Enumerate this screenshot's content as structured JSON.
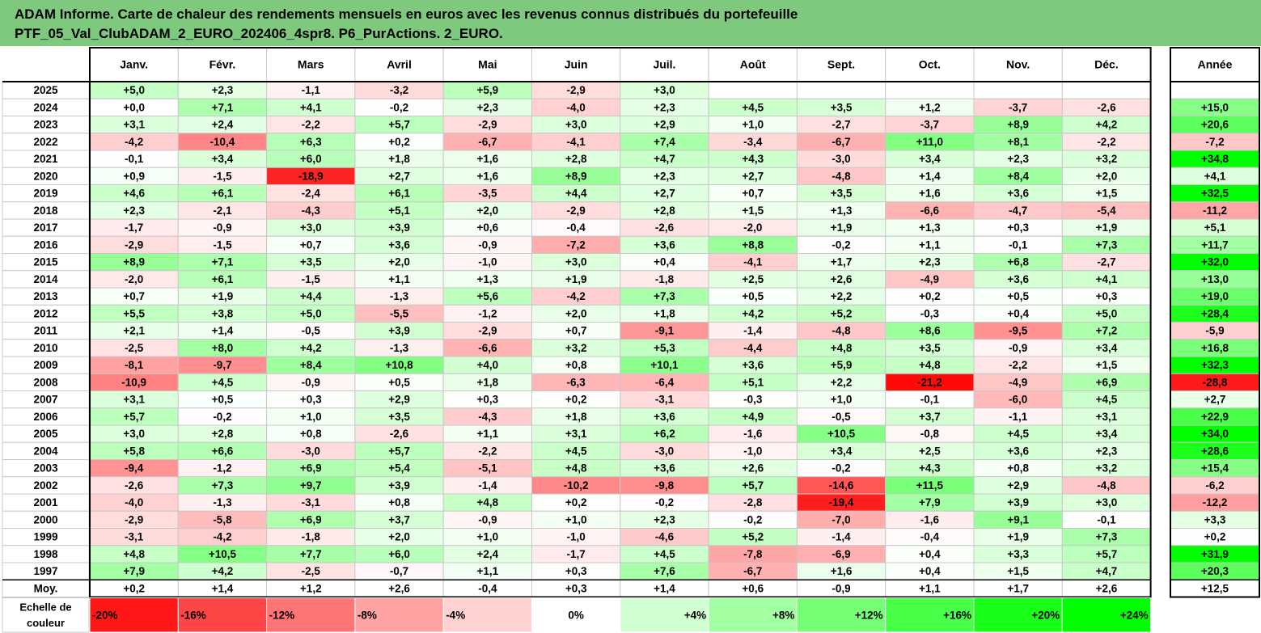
{
  "title": {
    "line1": "ADAM Informe. Carte de chaleur des rendements mensuels en euros avec les revenus connus distribués du portefeuille",
    "line2": "PTF_05_Val_ClubADAM_2_EURO_202406_4spr8. P6_PurActions. 2_EURO."
  },
  "chart_data": {
    "type": "heatmap",
    "months": [
      "Janv.",
      "Févr.",
      "Mars",
      "Avril",
      "Mai",
      "Juin",
      "Juil.",
      "Août",
      "Sept.",
      "Oct.",
      "Nov.",
      "Déc."
    ],
    "annual_header": "Année",
    "rows": [
      {
        "year": "2025",
        "values": [
          5.0,
          2.3,
          -1.1,
          -3.2,
          5.9,
          -2.9,
          3.0,
          null,
          null,
          null,
          null,
          null
        ],
        "annual": null
      },
      {
        "year": "2024",
        "values": [
          0.0,
          7.1,
          4.1,
          -0.2,
          2.3,
          -4.0,
          2.3,
          4.5,
          3.5,
          1.2,
          -3.7,
          -2.6
        ],
        "annual": 15.0
      },
      {
        "year": "2023",
        "values": [
          3.1,
          2.4,
          -2.2,
          5.7,
          -2.9,
          3.0,
          2.9,
          1.0,
          -2.7,
          -3.7,
          8.9,
          4.2
        ],
        "annual": 20.6
      },
      {
        "year": "2022",
        "values": [
          -4.2,
          -10.4,
          6.3,
          0.2,
          -6.7,
          -4.1,
          7.4,
          -3.4,
          -6.7,
          11.0,
          8.1,
          -2.2
        ],
        "annual": -7.2
      },
      {
        "year": "2021",
        "values": [
          -0.1,
          3.4,
          6.0,
          1.8,
          1.6,
          2.8,
          4.7,
          4.3,
          -3.0,
          3.4,
          2.3,
          3.2
        ],
        "annual": 34.8
      },
      {
        "year": "2020",
        "values": [
          0.9,
          -1.5,
          -18.9,
          2.7,
          1.6,
          8.9,
          2.3,
          2.7,
          -4.8,
          1.4,
          8.4,
          2.0
        ],
        "annual": 4.1
      },
      {
        "year": "2019",
        "values": [
          4.6,
          6.1,
          -2.4,
          6.1,
          -3.5,
          4.4,
          2.7,
          0.7,
          3.5,
          1.6,
          3.6,
          1.5
        ],
        "annual": 32.5
      },
      {
        "year": "2018",
        "values": [
          2.3,
          -2.1,
          -4.3,
          5.1,
          2.0,
          -2.9,
          2.8,
          1.5,
          1.3,
          -6.6,
          -4.7,
          -5.4
        ],
        "annual": -11.2
      },
      {
        "year": "2017",
        "values": [
          -1.7,
          -0.9,
          3.0,
          3.9,
          0.6,
          -0.4,
          -2.6,
          -2.0,
          1.9,
          1.3,
          0.3,
          1.9
        ],
        "annual": 5.1
      },
      {
        "year": "2016",
        "values": [
          -2.9,
          -1.5,
          0.7,
          3.6,
          -0.9,
          -7.2,
          3.6,
          8.8,
          -0.2,
          1.1,
          -0.1,
          7.3
        ],
        "annual": 11.7
      },
      {
        "year": "2015",
        "values": [
          8.9,
          7.1,
          3.5,
          2.0,
          -1.0,
          3.0,
          0.4,
          -4.1,
          1.7,
          2.3,
          6.8,
          -2.7
        ],
        "annual": 32.0
      },
      {
        "year": "2014",
        "values": [
          -2.0,
          6.1,
          -1.5,
          1.1,
          1.3,
          1.9,
          -1.8,
          2.5,
          2.6,
          -4.9,
          3.6,
          4.1
        ],
        "annual": 13.0
      },
      {
        "year": "2013",
        "values": [
          0.7,
          1.9,
          4.4,
          -1.3,
          5.6,
          -4.2,
          7.3,
          0.5,
          2.2,
          0.2,
          0.5,
          0.3
        ],
        "annual": 19.0
      },
      {
        "year": "2012",
        "values": [
          5.5,
          3.8,
          5.0,
          -5.5,
          -1.2,
          2.0,
          1.8,
          4.2,
          5.2,
          -0.3,
          0.4,
          5.0
        ],
        "annual": 28.4
      },
      {
        "year": "2011",
        "values": [
          2.1,
          1.4,
          -0.5,
          3.9,
          -2.9,
          0.7,
          -9.1,
          -1.4,
          -4.8,
          8.6,
          -9.5,
          7.2
        ],
        "annual": -5.9
      },
      {
        "year": "2010",
        "values": [
          -2.5,
          8.0,
          4.2,
          -1.3,
          -6.6,
          3.2,
          5.3,
          -4.4,
          4.8,
          3.5,
          -0.9,
          3.4
        ],
        "annual": 16.8
      },
      {
        "year": "2009",
        "values": [
          -8.1,
          -9.7,
          8.4,
          10.8,
          4.0,
          0.8,
          10.1,
          3.6,
          5.9,
          4.8,
          -2.2,
          1.5
        ],
        "annual": 32.3
      },
      {
        "year": "2008",
        "values": [
          -10.9,
          4.5,
          -0.9,
          0.5,
          1.8,
          -6.3,
          -6.4,
          5.1,
          2.2,
          -21.2,
          -4.9,
          6.9
        ],
        "annual": -28.8
      },
      {
        "year": "2007",
        "values": [
          3.1,
          0.5,
          0.3,
          2.9,
          0.3,
          0.2,
          -3.1,
          -0.3,
          1.0,
          -0.1,
          -6.0,
          4.5
        ],
        "annual": 2.7
      },
      {
        "year": "2006",
        "values": [
          5.7,
          -0.2,
          1.0,
          3.5,
          -4.3,
          1.8,
          3.6,
          4.9,
          -0.5,
          3.7,
          -1.1,
          3.1
        ],
        "annual": 22.9
      },
      {
        "year": "2005",
        "values": [
          3.0,
          2.8,
          0.8,
          -2.6,
          1.1,
          3.1,
          6.2,
          -1.6,
          10.5,
          -0.8,
          4.5,
          3.4
        ],
        "annual": 34.0
      },
      {
        "year": "2004",
        "values": [
          5.8,
          6.6,
          -3.0,
          5.7,
          -2.2,
          4.5,
          -3.0,
          -1.0,
          3.4,
          2.5,
          3.6,
          2.3
        ],
        "annual": 28.6
      },
      {
        "year": "2003",
        "values": [
          -9.4,
          -1.2,
          6.9,
          5.4,
          -5.1,
          4.8,
          3.6,
          2.6,
          -0.2,
          4.3,
          0.8,
          3.2
        ],
        "annual": 15.4
      },
      {
        "year": "2002",
        "values": [
          -2.6,
          7.3,
          9.7,
          3.9,
          -1.4,
          -10.2,
          -9.8,
          5.7,
          -14.6,
          11.5,
          2.9,
          -4.8
        ],
        "annual": -6.2
      },
      {
        "year": "2001",
        "values": [
          -4.0,
          -1.3,
          -3.1,
          0.8,
          4.8,
          0.2,
          -0.2,
          -2.8,
          -19.4,
          7.9,
          3.9,
          3.0
        ],
        "annual": -12.2
      },
      {
        "year": "2000",
        "values": [
          -2.9,
          -5.8,
          6.9,
          3.7,
          -0.9,
          1.0,
          2.3,
          -0.2,
          -7.0,
          -1.6,
          9.1,
          -0.1
        ],
        "annual": 3.3
      },
      {
        "year": "1999",
        "values": [
          -3.1,
          -4.2,
          -1.8,
          2.0,
          1.0,
          -1.0,
          -4.6,
          5.2,
          -1.4,
          -0.4,
          1.9,
          7.3
        ],
        "annual": 0.2
      },
      {
        "year": "1998",
        "values": [
          4.8,
          10.5,
          7.7,
          6.0,
          2.4,
          -1.7,
          4.5,
          -7.8,
          -6.9,
          0.4,
          3.3,
          5.7
        ],
        "annual": 31.9
      },
      {
        "year": "1997",
        "values": [
          7.9,
          4.2,
          -2.5,
          -0.7,
          1.1,
          0.3,
          7.6,
          -6.7,
          1.6,
          0.4,
          1.5,
          4.7
        ],
        "annual": 20.3
      }
    ],
    "average": {
      "label": "Moy.",
      "values": [
        0.2,
        1.4,
        1.2,
        2.6,
        -0.4,
        0.3,
        1.4,
        0.6,
        -0.9,
        1.1,
        1.7,
        2.6
      ],
      "annual": 12.5
    },
    "scale": {
      "label_line1": "Echelle de",
      "label_line2": "couleur",
      "steps": [
        {
          "label": "-20%",
          "value": -20
        },
        {
          "label": "-16%",
          "value": -16
        },
        {
          "label": "-12%",
          "value": -12
        },
        {
          "label": "-8%",
          "value": -8
        },
        {
          "label": "-4%",
          "value": -4
        },
        {
          "label": "0%",
          "value": 0
        },
        {
          "label": "+4%",
          "value": 4
        },
        {
          "label": "+8%",
          "value": 8
        },
        {
          "label": "+12%",
          "value": 12
        },
        {
          "label": "+16%",
          "value": 16
        },
        {
          "label": "+20%",
          "value": 20
        },
        {
          "label": "+24%",
          "value": 24
        }
      ]
    },
    "colors": {
      "title_bg": "#7fc97f",
      "neutral": "#ffffff",
      "positive_full": "#00ff00",
      "negative_full": "#ff0000",
      "grid": "#c8c8c8",
      "border": "#000000"
    }
  }
}
